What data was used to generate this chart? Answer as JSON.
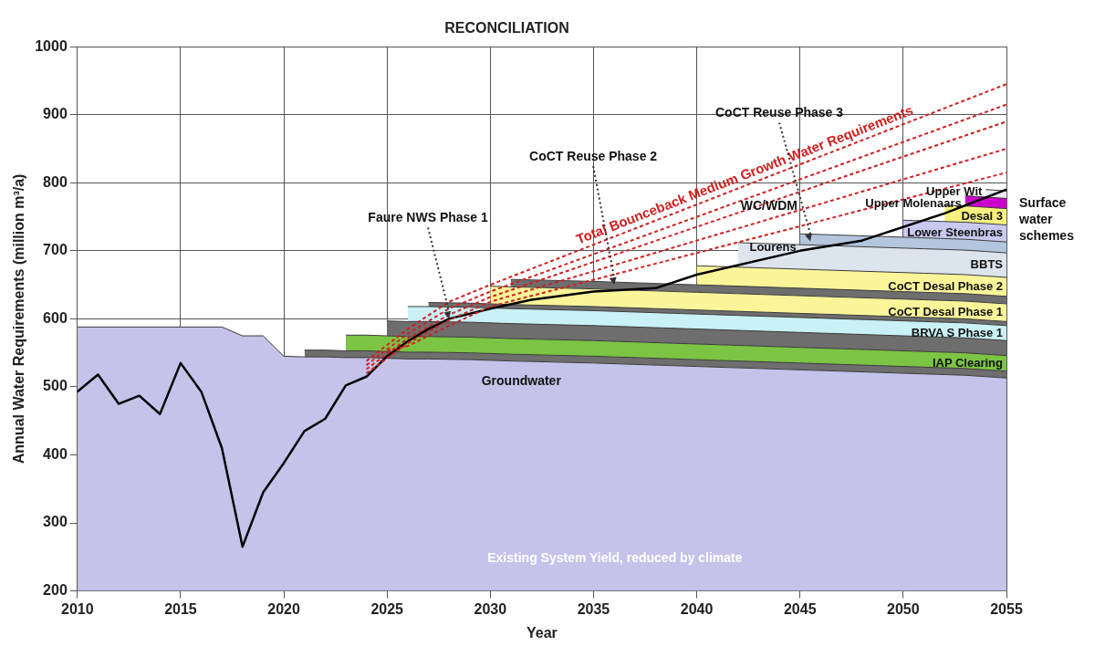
{
  "chart_data": {
    "type": "area",
    "title": "RECONCILIATION",
    "xlabel": "Year",
    "ylabel": "Annual Water Requirements (million m³/a)",
    "grid": true,
    "legend": false,
    "xlim": [
      2010,
      2055
    ],
    "xticks": [
      2010,
      2015,
      2020,
      2025,
      2030,
      2035,
      2040,
      2045,
      2050,
      2055
    ],
    "ylim": [
      200,
      1000
    ],
    "yticks": [
      200,
      300,
      400,
      500,
      600,
      700,
      800,
      900,
      1000
    ],
    "x": [
      2010,
      2017,
      2018,
      2019,
      2020,
      2021,
      2022,
      2023,
      2024,
      2025,
      2026,
      2027,
      2029,
      2030,
      2031,
      2035,
      2039,
      2040,
      2041,
      2042,
      2044,
      2045,
      2046,
      2050,
      2051,
      2052,
      2053,
      2054,
      2055
    ],
    "series": [
      {
        "name": "Existing System Yield, reduced by climate",
        "color": "#c5c3ea",
        "values": [
          588,
          588,
          575,
          575,
          545,
          544,
          544,
          543,
          543,
          542,
          541,
          541,
          540,
          539,
          538,
          535,
          531,
          530,
          529,
          528,
          526,
          525,
          524,
          520,
          519,
          518,
          517,
          515,
          513
        ]
      },
      {
        "color": "#6e6e6e",
        "values": [
          null,
          null,
          null,
          null,
          null,
          554,
          554,
          553,
          553,
          552,
          551,
          551,
          550,
          549,
          548,
          545,
          541,
          540,
          539,
          538,
          536,
          535,
          534,
          530,
          529,
          528,
          527,
          525,
          523
        ]
      },
      {
        "name": "IAP Clearing",
        "color": "#7cc444",
        "values": [
          null,
          null,
          null,
          null,
          null,
          null,
          null,
          576,
          576,
          575,
          574,
          574,
          573,
          572,
          571,
          568,
          564,
          563,
          562,
          561,
          559,
          558,
          557,
          553,
          552,
          551,
          550,
          548,
          546
        ]
      },
      {
        "color": "#6e6e6e",
        "values": [
          null,
          null,
          null,
          null,
          null,
          null,
          null,
          null,
          null,
          597,
          596,
          596,
          595,
          594,
          593,
          590,
          586,
          585,
          584,
          583,
          581,
          580,
          579,
          575,
          574,
          573,
          572,
          570,
          568
        ]
      },
      {
        "name": "BRVA S Phase 1",
        "color": "#c9f1f6",
        "values": [
          null,
          null,
          null,
          null,
          null,
          null,
          null,
          null,
          null,
          null,
          618,
          618,
          617,
          616,
          615,
          612,
          608,
          607,
          606,
          605,
          603,
          602,
          601,
          597,
          596,
          595,
          594,
          592,
          590
        ]
      },
      {
        "color": "#6e6e6e",
        "values": [
          null,
          null,
          null,
          null,
          null,
          null,
          null,
          null,
          null,
          null,
          null,
          624,
          623,
          622,
          621,
          618,
          614,
          613,
          612,
          611,
          609,
          608,
          607,
          603,
          602,
          601,
          600,
          598,
          596
        ]
      },
      {
        "name": "CoCT Desal Phase 1",
        "color": "#fbf59a",
        "values": [
          null,
          null,
          null,
          null,
          null,
          null,
          null,
          null,
          null,
          null,
          null,
          null,
          null,
          648,
          647,
          644,
          640,
          639,
          638,
          637,
          635,
          634,
          633,
          629,
          628,
          627,
          626,
          624,
          622
        ]
      },
      {
        "color": "#6e6e6e",
        "values": [
          null,
          null,
          null,
          null,
          null,
          null,
          null,
          null,
          null,
          null,
          null,
          null,
          null,
          null,
          658,
          655,
          651,
          650,
          649,
          648,
          646,
          645,
          644,
          640,
          639,
          638,
          637,
          635,
          633
        ]
      },
      {
        "name": "CoCT Desal Phase 2",
        "color": "#fbf59a",
        "values": [
          null,
          null,
          null,
          null,
          null,
          null,
          null,
          null,
          null,
          null,
          null,
          null,
          null,
          null,
          null,
          null,
          null,
          678,
          677,
          676,
          674,
          673,
          672,
          668,
          667,
          666,
          665,
          663,
          661
        ]
      },
      {
        "name": "BBTS",
        "color": "#dce4ee",
        "values": [
          null,
          null,
          null,
          null,
          null,
          null,
          null,
          null,
          null,
          null,
          null,
          null,
          null,
          null,
          null,
          null,
          null,
          null,
          null,
          712,
          710,
          709,
          708,
          704,
          703,
          702,
          701,
          699,
          697
        ]
      },
      {
        "name": "Lourens",
        "color": "#b4c6de",
        "values": [
          null,
          null,
          null,
          null,
          null,
          null,
          null,
          null,
          null,
          null,
          null,
          null,
          null,
          null,
          null,
          null,
          null,
          null,
          null,
          null,
          null,
          725,
          724,
          720,
          719,
          718,
          717,
          715,
          713
        ]
      },
      {
        "name": "Lower Steenbras",
        "color": "#c9c9ef",
        "values": [
          null,
          null,
          null,
          null,
          null,
          null,
          null,
          null,
          null,
          null,
          null,
          null,
          null,
          null,
          null,
          null,
          null,
          null,
          null,
          null,
          null,
          null,
          null,
          745,
          744,
          743,
          742,
          740,
          738
        ]
      },
      {
        "name": "Desal 3",
        "color": "#f6f07e",
        "values": [
          null,
          null,
          null,
          null,
          null,
          null,
          null,
          null,
          null,
          null,
          null,
          null,
          null,
          null,
          null,
          null,
          null,
          null,
          null,
          null,
          null,
          null,
          null,
          null,
          null,
          767,
          766,
          764,
          762
        ]
      },
      {
        "name": "Upper Molenaars",
        "color": "#cc00cc",
        "values": [
          null,
          null,
          null,
          null,
          null,
          null,
          null,
          null,
          null,
          null,
          null,
          null,
          null,
          null,
          null,
          null,
          null,
          null,
          null,
          null,
          null,
          null,
          null,
          null,
          null,
          null,
          781,
          779,
          777
        ]
      },
      {
        "name": "Upper Wit",
        "color": "#ececf4",
        "values": [
          null,
          null,
          null,
          null,
          null,
          null,
          null,
          null,
          null,
          null,
          null,
          null,
          null,
          null,
          null,
          null,
          null,
          null,
          null,
          null,
          null,
          null,
          null,
          null,
          null,
          null,
          null,
          790,
          788
        ]
      },
      {
        "type": "line",
        "name": "Total Bounceback Medium Growth Water Requirements",
        "color": "#d02020",
        "line_style": "dashed",
        "x": [
          2024,
          2026,
          2028,
          2030,
          2055
        ],
        "values": [
          538,
          585,
          625,
          650,
          945
        ]
      },
      {
        "type": "line",
        "color": "#d02020",
        "line_style": "dashed",
        "x": [
          2024,
          2026,
          2028,
          2030,
          2055
        ],
        "values": [
          532,
          578,
          615,
          640,
          915
        ]
      },
      {
        "type": "line",
        "color": "#d02020",
        "line_style": "dashed",
        "x": [
          2024,
          2026,
          2028,
          2030,
          2055
        ],
        "values": [
          526,
          571,
          606,
          632,
          890
        ]
      },
      {
        "type": "line",
        "color": "#d02020",
        "line_style": "dashed",
        "x": [
          2024,
          2026,
          2028,
          2030,
          2055
        ],
        "values": [
          520,
          564,
          598,
          625,
          850
        ]
      },
      {
        "type": "line",
        "color": "#d02020",
        "line_style": "dashed",
        "x": [
          2025,
          2026,
          2028,
          2030,
          2055
        ],
        "values": [
          553,
          560,
          590,
          618,
          815
        ]
      },
      {
        "type": "line",
        "color": "#000000",
        "line_style": "solid",
        "x": [
          2010,
          2011,
          2012,
          2013,
          2014,
          2015,
          2016,
          2017,
          2018,
          2019,
          2020,
          2021,
          2022,
          2023,
          2024,
          2025,
          2026,
          2027,
          2028,
          2030,
          2032,
          2035,
          2038,
          2040,
          2045,
          2048,
          2050,
          2052,
          2055
        ],
        "values": [
          493,
          518,
          475,
          487,
          460,
          535,
          493,
          410,
          265,
          345,
          388,
          435,
          453,
          502,
          515,
          545,
          567,
          585,
          600,
          615,
          628,
          640,
          645,
          665,
          700,
          715,
          735,
          755,
          790
        ]
      }
    ],
    "annotations": [
      {
        "text": "Faure NWS Phase 1",
        "x": 2028,
        "y": 600
      },
      {
        "text": "CoCT Reuse Phase 2",
        "x": 2036,
        "y": 650
      },
      {
        "text": "CoCT Reuse Phase 3",
        "x": 2045.5,
        "y": 714
      },
      "WC/WDM",
      "Groundwater",
      "Surface water schemes"
    ]
  }
}
